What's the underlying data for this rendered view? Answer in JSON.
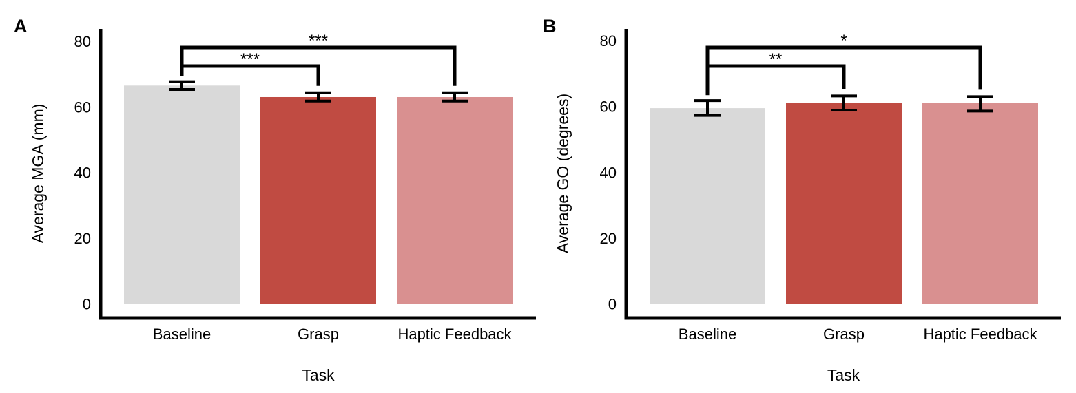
{
  "chart_data": [
    {
      "panel_label": "A",
      "type": "bar",
      "categories": [
        "Baseline",
        "Grasp",
        "Haptic Feedback"
      ],
      "values": [
        66.5,
        63.0,
        63.0
      ],
      "error": [
        [
          65.3,
          67.7
        ],
        [
          61.8,
          64.3
        ],
        [
          61.8,
          64.3
        ]
      ],
      "colors": [
        "#d9d9d9",
        "#c04b42",
        "#d99090"
      ],
      "xlabel": "Task",
      "ylabel": "Average MGA (mm)",
      "ylim": [
        0,
        84
      ],
      "yticks": [
        "0",
        "20",
        "40",
        "60",
        "80"
      ],
      "grid": false,
      "significance": [
        {
          "from": "Baseline",
          "to": "Grasp",
          "label": "***"
        },
        {
          "from": "Baseline",
          "to": "Haptic Feedback",
          "label": "***"
        }
      ]
    },
    {
      "panel_label": "B",
      "type": "bar",
      "categories": [
        "Baseline",
        "Grasp",
        "Haptic Feedback"
      ],
      "values": [
        59.5,
        61.0,
        61.0
      ],
      "error": [
        [
          57.3,
          61.8
        ],
        [
          58.9,
          63.2
        ],
        [
          58.6,
          63.0
        ]
      ],
      "colors": [
        "#d9d9d9",
        "#c04b42",
        "#d99090"
      ],
      "xlabel": "Task",
      "ylabel": "Average GO (degrees)",
      "ylim": [
        0,
        84
      ],
      "yticks": [
        "0",
        "20",
        "40",
        "60",
        "80"
      ],
      "grid": false,
      "significance": [
        {
          "from": "Baseline",
          "to": "Grasp",
          "label": "**"
        },
        {
          "from": "Baseline",
          "to": "Haptic Feedback",
          "label": "*"
        }
      ]
    }
  ]
}
